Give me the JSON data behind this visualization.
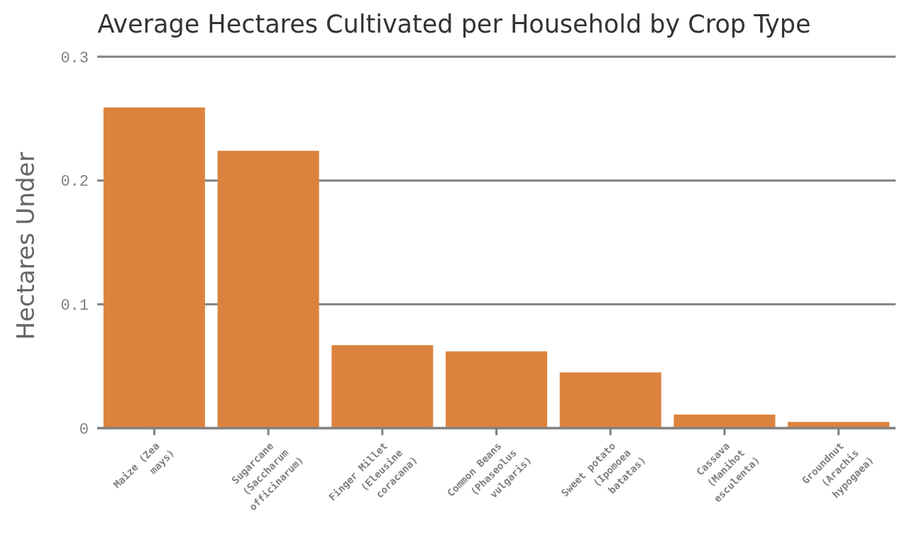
{
  "chart_data": {
    "type": "bar",
    "title": "Average Hectares Cultivated per Household by Crop Type",
    "ylabel": "Hectares Under",
    "categories": [
      "Maize (Zea mays)",
      "Sugarcane (Saccharum officinarum)",
      "Finger Millet (Eleusine coracana)",
      "Common Beans (Phaseolus vulgaris)",
      "Sweet potato (Ipomoea batatas)",
      "Cassava (Manihot esculenta)",
      "Groundnut (Arachis hypogaea)"
    ],
    "values": [
      0.259,
      0.224,
      0.067,
      0.062,
      0.045,
      0.011,
      0.005
    ],
    "color": "#db833e",
    "ylim": [
      0,
      0.3
    ],
    "yticks": [
      0,
      0.1,
      0.2,
      0.3
    ],
    "grid": "y"
  }
}
